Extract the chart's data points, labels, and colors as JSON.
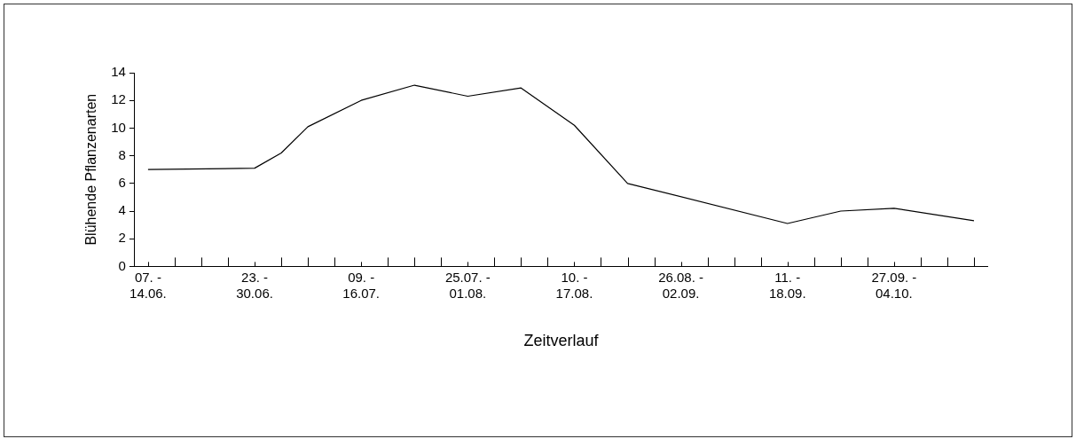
{
  "chart_data": {
    "type": "line",
    "xlabel": "Zeitverlauf",
    "ylabel": "Blühende Pflanzenarten",
    "categories": [
      "07. -\n14.06.",
      null,
      null,
      null,
      "23. -\n30.06.",
      null,
      null,
      null,
      "09. -\n16.07.",
      null,
      null,
      null,
      "25.07. -\n01.08.",
      null,
      null,
      null,
      "10. -\n17.08.",
      null,
      null,
      null,
      "26.08. -\n02.09.",
      null,
      null,
      null,
      "11. -\n18.09.",
      null,
      null,
      null,
      "27.09. -\n04.10.",
      null,
      null,
      null
    ],
    "series": [
      {
        "color": "#000000",
        "values": [
          7.0,
          null,
          null,
          null,
          7.1,
          8.2,
          10.1,
          null,
          12.0,
          null,
          13.1,
          null,
          12.3,
          null,
          12.9,
          null,
          10.2,
          null,
          6.0,
          null,
          null,
          null,
          null,
          null,
          3.1,
          null,
          4.0,
          null,
          4.2,
          null,
          null,
          3.3
        ]
      }
    ],
    "ylim": [
      0,
      14
    ],
    "yticks": [
      0,
      2,
      4,
      6,
      8,
      10,
      12,
      14
    ],
    "grid": false,
    "legend": false,
    "marker": "none",
    "line_style": "solid"
  }
}
